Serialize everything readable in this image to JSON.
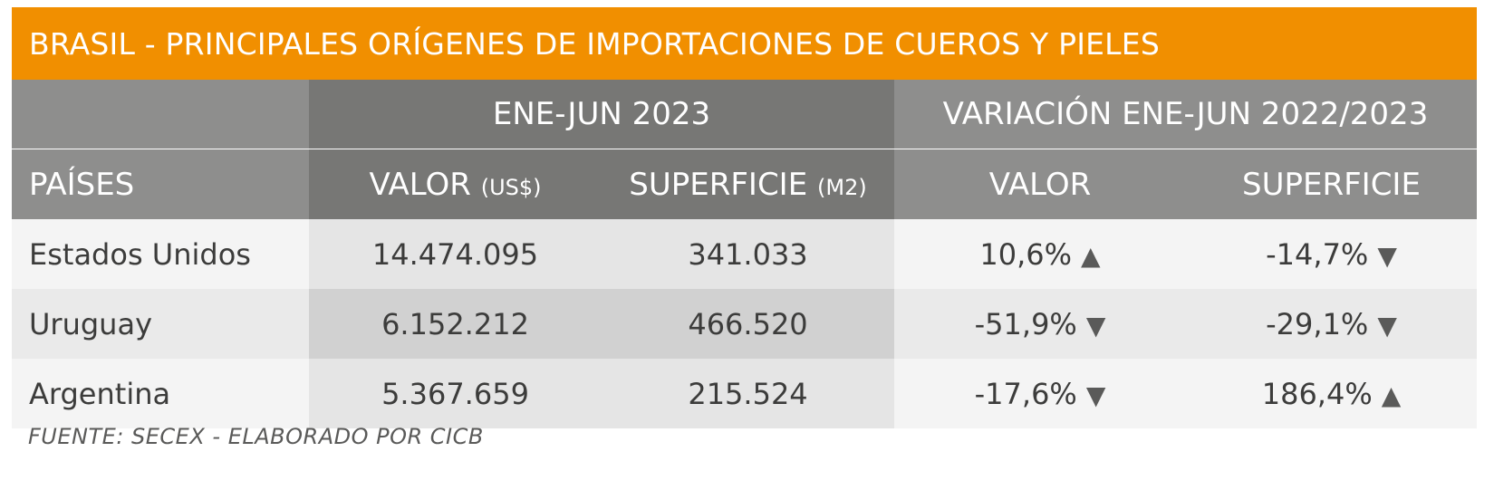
{
  "title": "BRASIL - PRINCIPALES ORÍGENES DE IMPORTACIONES DE CUEROS Y PIELES",
  "header": {
    "group1": "ENE-JUN 2023",
    "group2": "VARIACIÓN ENE-JUN 2022/2023",
    "col_country": "PAÍSES",
    "col_valor": "VALOR",
    "col_valor_unit": "(US$)",
    "col_superficie": "SUPERFICIE",
    "col_superficie_unit": "(M2)",
    "col_var_valor": "VALOR",
    "col_var_superficie": "SUPERFICIE"
  },
  "rows": [
    {
      "country": "Estados Unidos",
      "valor": "14.474.095",
      "superficie": "341.033",
      "var_valor": "10,6%",
      "var_valor_trend": "up",
      "var_superficie": "-14,7%",
      "var_superficie_trend": "down"
    },
    {
      "country": "Uruguay",
      "valor": "6.152.212",
      "superficie": "466.520",
      "var_valor": "-51,9%",
      "var_valor_trend": "down",
      "var_superficie": "-29,1%",
      "var_superficie_trend": "down"
    },
    {
      "country": "Argentina",
      "valor": "5.367.659",
      "superficie": "215.524",
      "var_valor": "-17,6%",
      "var_valor_trend": "down",
      "var_superficie": "186,4%",
      "var_superficie_trend": "up"
    }
  ],
  "source": "FUENTE: SECEX - ELABORADO POR CICB",
  "colors": {
    "title_bg": "#f18f00",
    "header_mid": "#8e8e8d",
    "header_dark": "#777775"
  }
}
